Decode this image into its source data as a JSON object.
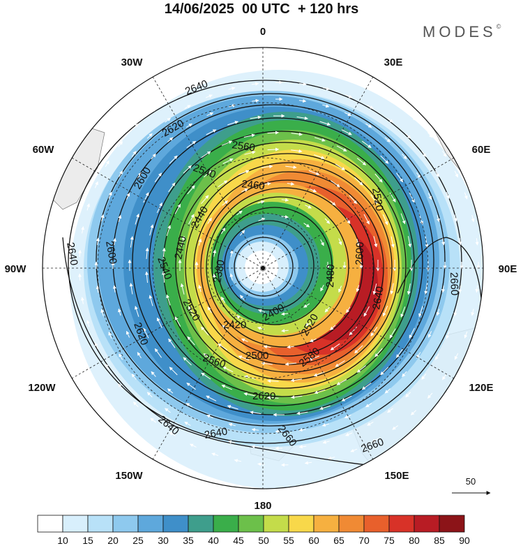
{
  "title": "14/06/2025  00 UTC  + 120 hrs",
  "brand": "MODES",
  "brand_mark": "©",
  "longitude_labels": [
    "0",
    "30E",
    "60E",
    "90E",
    "120E",
    "150E",
    "180",
    "150W",
    "120W",
    "90W",
    "60W",
    "30W"
  ],
  "contour_labels": [
    {
      "text": "2640"
    },
    {
      "text": "2620"
    },
    {
      "text": "2600"
    },
    {
      "text": "2560"
    },
    {
      "text": "2540"
    },
    {
      "text": "2460"
    },
    {
      "text": "2440"
    },
    {
      "text": "2440"
    },
    {
      "text": "2380"
    },
    {
      "text": "2420"
    },
    {
      "text": "2400"
    },
    {
      "text": "2500"
    },
    {
      "text": "2480"
    },
    {
      "text": "2520"
    },
    {
      "text": "2580"
    },
    {
      "text": "2600"
    },
    {
      "text": "2620"
    },
    {
      "text": "2640"
    },
    {
      "text": "2640"
    },
    {
      "text": "2660"
    },
    {
      "text": "2660"
    },
    {
      "text": "2660"
    },
    {
      "text": "2640"
    },
    {
      "text": "2620"
    },
    {
      "text": "2640"
    },
    {
      "text": "2600"
    },
    {
      "text": "2540"
    },
    {
      "text": "2520"
    },
    {
      "text": "2560"
    },
    {
      "text": "2520"
    }
  ],
  "vector_reference": {
    "label": "50"
  },
  "colorbar": {
    "ticks": [
      "10",
      "15",
      "20",
      "25",
      "30",
      "35",
      "40",
      "45",
      "50",
      "55",
      "60",
      "65",
      "70",
      "75",
      "80",
      "85",
      "90"
    ],
    "colors": [
      "#ffffff",
      "#d8effc",
      "#b8e1f8",
      "#8ec9ee",
      "#5ea8dc",
      "#3f8fc9",
      "#3e9e8c",
      "#3aae4a",
      "#6cc04a",
      "#c4dc4a",
      "#f8d84a",
      "#f6b040",
      "#f08a34",
      "#e8602c",
      "#d83228",
      "#b81c24",
      "#8c1418"
    ]
  },
  "colors": {
    "land": "#e8e8e8",
    "vector": "#ffffff",
    "contour": "#111111"
  }
}
